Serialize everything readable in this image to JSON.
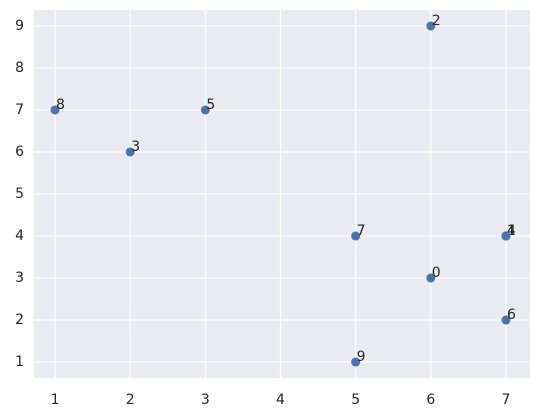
{
  "chart_data": {
    "type": "scatter",
    "x": [
      6,
      7,
      6,
      2,
      7,
      3,
      7,
      5,
      1,
      5
    ],
    "values": [
      3,
      4,
      9,
      6,
      4,
      7,
      2,
      4,
      7,
      1
    ],
    "point_labels": [
      "0",
      "1",
      "2",
      "3",
      "4",
      "5",
      "6",
      "7",
      "8",
      "9"
    ],
    "color": "#4c72b0",
    "xlim": [
      0.72,
      7.32
    ],
    "xticks": [
      1,
      2,
      3,
      4,
      5,
      6,
      7
    ],
    "ylim": [
      0.62,
      9.38
    ],
    "yticks": [
      1,
      2,
      3,
      4,
      5,
      6,
      7,
      8,
      9
    ],
    "grid": true
  }
}
